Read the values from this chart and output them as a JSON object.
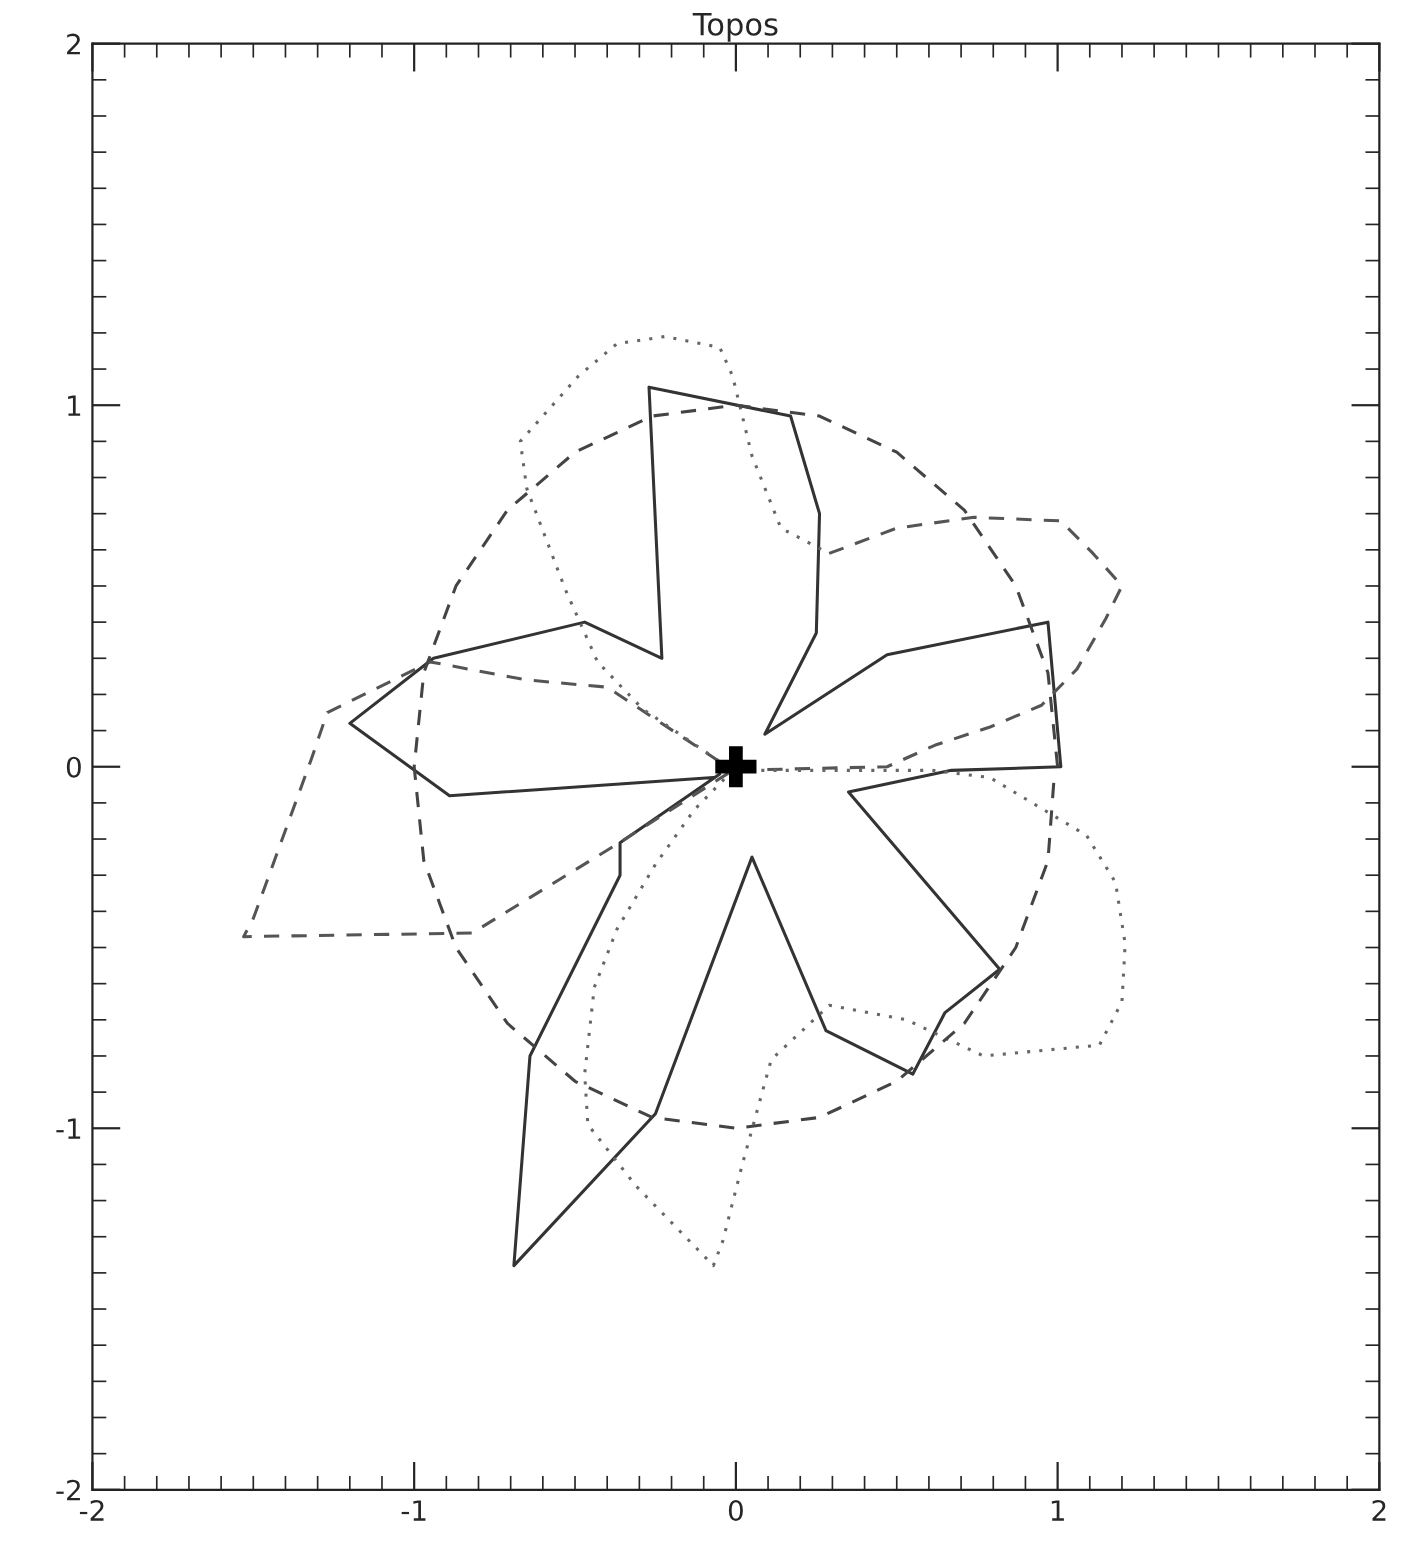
{
  "chart_data": {
    "type": "line",
    "title": "Topos",
    "xlim": [
      -2,
      2
    ],
    "ylim": [
      -2,
      2
    ],
    "xticks": [
      -2,
      -1,
      0,
      1,
      2
    ],
    "yticks": [
      -2,
      -1,
      0,
      1,
      2
    ],
    "grid": false,
    "legend": false,
    "series": [
      {
        "color": "#333333",
        "line_style": "solid",
        "x": [
          -0.07,
          -0.89,
          -1.2,
          -0.94,
          -0.47,
          -0.23,
          -0.27,
          0.17,
          0.26,
          0.25,
          0.09,
          0.47,
          0.97,
          1.01,
          0.67,
          0.35,
          0.82,
          0.65,
          0.55,
          0.28,
          0.05,
          -0.25,
          -0.69,
          -0.64,
          -0.36,
          -0.36,
          -0.05
        ],
        "values": [
          -0.03,
          -0.08,
          0.12,
          0.3,
          0.4,
          0.3,
          1.05,
          0.97,
          0.7,
          0.37,
          0.09,
          0.31,
          0.4,
          0.0,
          -0.01,
          -0.07,
          -0.56,
          -0.68,
          -0.85,
          -0.73,
          -0.25,
          -0.96,
          -1.38,
          -0.8,
          -0.3,
          -0.21,
          -0.02
        ]
      },
      {
        "color": "#555555",
        "line_style": "dashed",
        "x": [
          0.29,
          0.5,
          0.74,
          1.01,
          1.11,
          1.2,
          1.15,
          1.06,
          0.95,
          0.79,
          0.62,
          0.47,
          -0.01,
          -0.38,
          -0.82,
          -1.53,
          -1.5,
          -1.32,
          -1.27,
          -0.95,
          -0.65,
          -0.4,
          -0.01
        ],
        "values": [
          0.59,
          0.66,
          0.69,
          0.68,
          0.59,
          0.5,
          0.41,
          0.27,
          0.17,
          0.11,
          0.06,
          0.0,
          -0.01,
          -0.22,
          -0.46,
          -0.47,
          -0.42,
          0.02,
          0.15,
          0.29,
          0.24,
          0.22,
          -0.01
        ]
      },
      {
        "color": "#666666",
        "line_style": "dotted",
        "x": [
          -0.01,
          -0.13,
          -0.25,
          -0.37,
          -0.44,
          -0.47,
          -0.46,
          -0.31,
          -0.19,
          -0.07,
          -0.04,
          0.02,
          0.11,
          0.29,
          0.53,
          0.77,
          1.13,
          1.2,
          1.21,
          1.18,
          1.09,
          0.94,
          0.79,
          0.61,
          -0.01,
          -0.29,
          -0.43,
          -0.53,
          -0.65,
          -0.67,
          -0.49,
          -0.37,
          -0.22,
          -0.05,
          -0.01,
          0.05,
          0.14,
          0.29
        ],
        "values": [
          -0.01,
          -0.12,
          -0.27,
          -0.45,
          -0.61,
          -0.85,
          -0.99,
          -1.16,
          -1.27,
          -1.38,
          -1.31,
          -1.1,
          -0.81,
          -0.66,
          -0.7,
          -0.8,
          -0.77,
          -0.65,
          -0.49,
          -0.32,
          -0.19,
          -0.11,
          -0.03,
          -0.01,
          -0.01,
          0.16,
          0.29,
          0.49,
          0.77,
          0.9,
          1.08,
          1.17,
          1.19,
          1.16,
          1.08,
          0.86,
          0.66,
          0.59
        ]
      },
      {
        "color": "#444444",
        "line_style": "dashed",
        "x": [
          1,
          0.97,
          0.87,
          0.71,
          0.5,
          0.26,
          0,
          -0.26,
          -0.5,
          -0.71,
          -0.87,
          -0.97,
          -1,
          -0.97,
          -0.87,
          -0.71,
          -0.5,
          -0.26,
          0,
          0.26,
          0.5,
          0.71,
          0.87,
          0.97,
          0.99
        ],
        "values": [
          0,
          0.26,
          0.5,
          0.71,
          0.87,
          0.97,
          1,
          0.97,
          0.87,
          0.71,
          0.5,
          0.26,
          0,
          -0.26,
          -0.5,
          -0.71,
          -0.87,
          -0.97,
          -1,
          -0.97,
          -0.87,
          -0.71,
          -0.5,
          -0.26,
          -0.02
        ]
      },
      {
        "type": "scatter",
        "color": "#000000",
        "marker": "cross",
        "x": [
          0
        ],
        "values": [
          0
        ]
      }
    ]
  }
}
